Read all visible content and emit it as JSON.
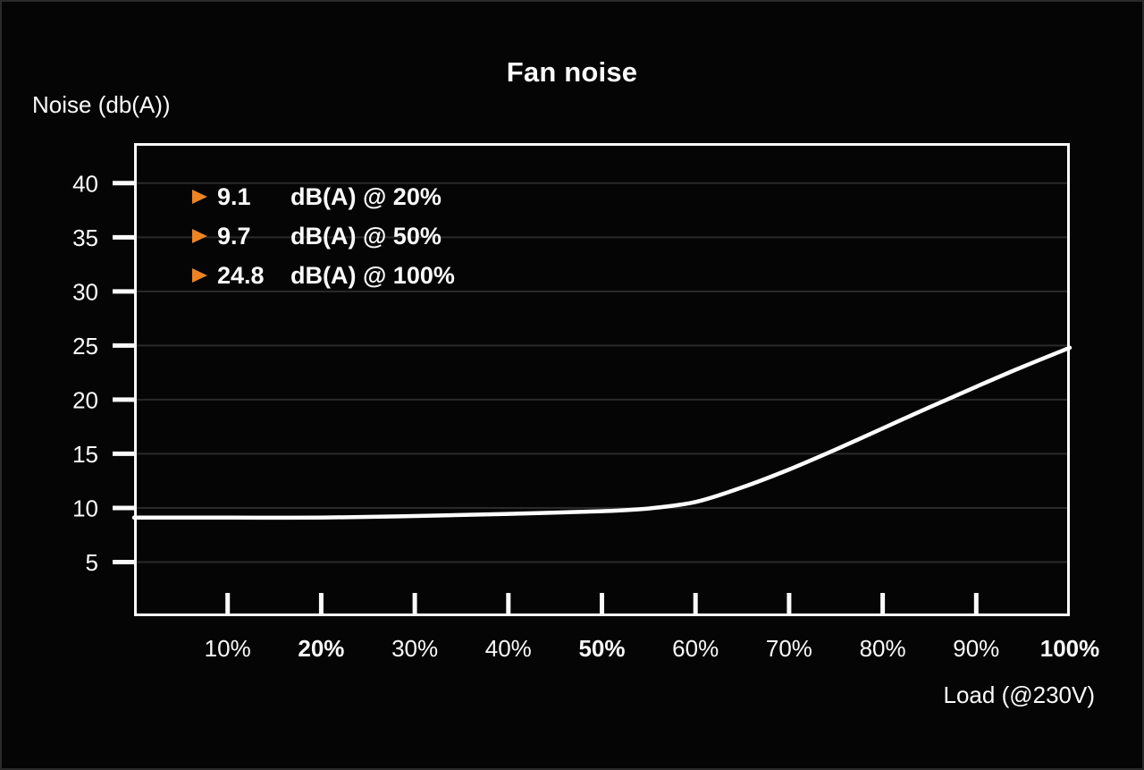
{
  "colors": {
    "background": "#050506",
    "foreground": "#fafafa",
    "grid": "#2a2a28",
    "accent": "#ee8322",
    "curve": "#ffffff"
  },
  "chart": {
    "title": "Fan noise",
    "y_axis_label": "Noise (db(A))",
    "x_axis_label": "Load (@230V)",
    "legend": [
      {
        "value": "9.1",
        "unit": "dB(A) @ 20%"
      },
      {
        "value": "9.7",
        "unit": "dB(A) @ 50%"
      },
      {
        "value": "24.8",
        "unit": "dB(A) @ 100%"
      }
    ]
  },
  "chart_data": {
    "type": "line",
    "title": "Fan noise",
    "xlabel": "Load (@230V)",
    "ylabel": "Noise (db(A))",
    "x_unit": "% load",
    "y_unit": "dB(A)",
    "xlim": [
      0,
      100
    ],
    "ylim": [
      0,
      43.7
    ],
    "grid": "horizontal",
    "legend_position": "top-left",
    "annotations": [
      "9.1 dB(A) @ 20%",
      "9.7 dB(A) @ 50%",
      "24.8 dB(A) @ 100%"
    ],
    "x_ticks": [
      {
        "value": 10,
        "label": "10%",
        "bold": false,
        "mark": true
      },
      {
        "value": 20,
        "label": "20%",
        "bold": true,
        "mark": true
      },
      {
        "value": 30,
        "label": "30%",
        "bold": false,
        "mark": true
      },
      {
        "value": 40,
        "label": "40%",
        "bold": false,
        "mark": true
      },
      {
        "value": 50,
        "label": "50%",
        "bold": true,
        "mark": true
      },
      {
        "value": 60,
        "label": "60%",
        "bold": false,
        "mark": true
      },
      {
        "value": 70,
        "label": "70%",
        "bold": false,
        "mark": true
      },
      {
        "value": 80,
        "label": "80%",
        "bold": false,
        "mark": true
      },
      {
        "value": 90,
        "label": "90%",
        "bold": false,
        "mark": true
      },
      {
        "value": 100,
        "label": "100%",
        "bold": true,
        "mark": false
      }
    ],
    "y_ticks": [
      {
        "value": 40,
        "label": "40"
      },
      {
        "value": 35,
        "label": "35"
      },
      {
        "value": 30,
        "label": "30"
      },
      {
        "value": 25,
        "label": "25"
      },
      {
        "value": 20,
        "label": "20"
      },
      {
        "value": 15,
        "label": "15"
      },
      {
        "value": 10,
        "label": "10"
      },
      {
        "value": 5,
        "label": "5"
      }
    ],
    "series": [
      {
        "name": "Fan noise",
        "color": "#ffffff",
        "points": [
          [
            0,
            9.1
          ],
          [
            10,
            9.1
          ],
          [
            20,
            9.1
          ],
          [
            30,
            9.25
          ],
          [
            40,
            9.45
          ],
          [
            50,
            9.7
          ],
          [
            55,
            9.95
          ],
          [
            60,
            10.55
          ],
          [
            65,
            11.9
          ],
          [
            70,
            13.55
          ],
          [
            75,
            15.4
          ],
          [
            80,
            17.35
          ],
          [
            85,
            19.3
          ],
          [
            90,
            21.2
          ],
          [
            95,
            23.05
          ],
          [
            100,
            24.8
          ]
        ]
      }
    ]
  }
}
